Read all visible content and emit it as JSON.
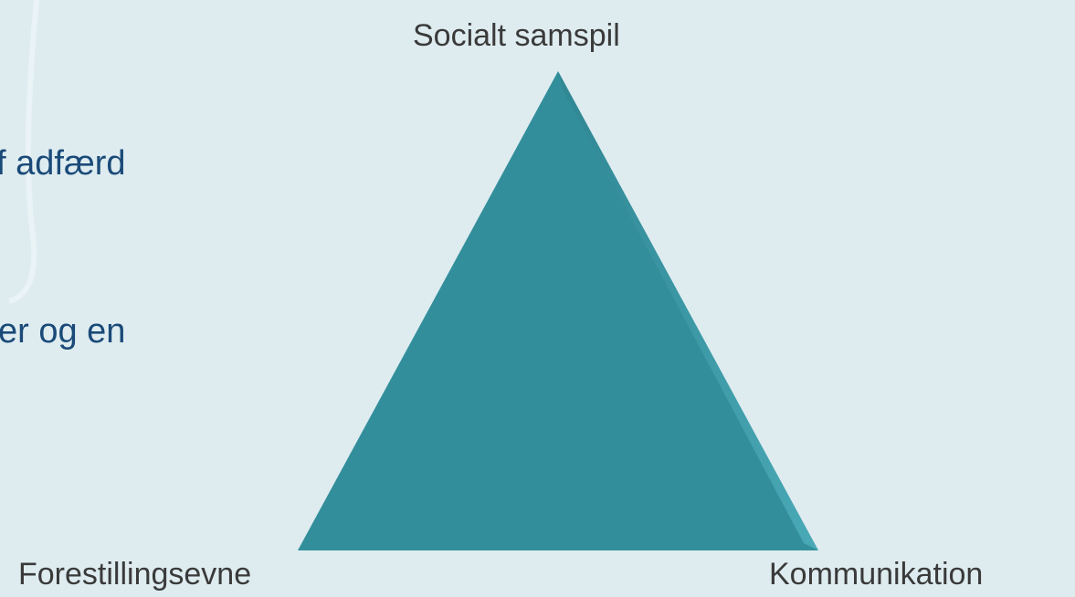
{
  "text_fragments": [
    "f adfærd",
    "er og en"
  ],
  "nodes": [
    {
      "label": "Socialt samspil"
    },
    {
      "label": "Forestillingsevne"
    },
    {
      "label": "Kommunikation"
    }
  ]
}
